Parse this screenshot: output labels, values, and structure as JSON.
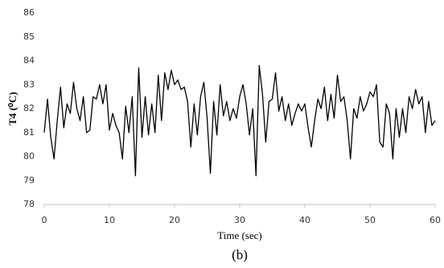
{
  "chart_data": {
    "type": "line",
    "xlabel": "Time (sec)",
    "ylabel": "T4 (⁰C)",
    "caption": "(b)",
    "x": [
      0,
      0.5,
      1,
      1.5,
      2,
      2.5,
      3,
      3.5,
      4,
      4.5,
      5,
      5.5,
      6,
      6.5,
      7,
      7.5,
      8,
      8.5,
      9,
      9.5,
      10,
      10.5,
      11,
      11.5,
      12,
      12.5,
      13,
      13.5,
      14,
      14.5,
      15,
      15.5,
      16,
      16.5,
      17,
      17.5,
      18,
      18.5,
      19,
      19.5,
      20,
      20.5,
      21,
      21.5,
      22,
      22.5,
      23,
      23.5,
      24,
      24.5,
      25,
      25.5,
      26,
      26.5,
      27,
      27.5,
      28,
      28.5,
      29,
      29.5,
      30,
      30.5,
      31,
      31.5,
      32,
      32.5,
      33,
      33.5,
      34,
      34.5,
      35,
      35.5,
      36,
      36.5,
      37,
      37.5,
      38,
      38.5,
      39,
      39.5,
      40,
      40.5,
      41,
      41.5,
      42,
      42.5,
      43,
      43.5,
      44,
      44.5,
      45,
      45.5,
      46,
      46.5,
      47,
      47.5,
      48,
      48.5,
      49,
      49.5,
      50,
      50.5,
      51,
      51.5,
      52,
      52.5,
      53,
      53.5,
      54,
      54.5,
      55,
      55.5,
      56,
      56.5,
      57,
      57.5,
      58,
      58.5,
      59,
      59.5,
      60
    ],
    "series": [
      {
        "color": "#000000",
        "values": [
          81.0,
          82.4,
          80.8,
          79.9,
          81.5,
          82.9,
          81.2,
          82.2,
          81.8,
          83.1,
          82.0,
          81.5,
          82.5,
          81.0,
          81.1,
          82.5,
          82.4,
          83.0,
          82.2,
          83.0,
          81.1,
          81.8,
          81.3,
          81.0,
          79.9,
          82.1,
          81.0,
          82.5,
          79.2,
          83.7,
          80.8,
          82.5,
          80.9,
          82.2,
          81.0,
          83.4,
          81.5,
          83.5,
          82.8,
          83.6,
          83.0,
          83.2,
          82.8,
          82.9,
          82.3,
          80.4,
          82.2,
          80.9,
          82.5,
          83.1,
          81.6,
          79.3,
          82.3,
          80.9,
          83.0,
          81.7,
          82.3,
          81.5,
          82.0,
          81.6,
          82.5,
          83.0,
          82.2,
          80.9,
          82.0,
          79.2,
          83.8,
          82.6,
          80.6,
          82.3,
          82.4,
          83.5,
          81.9,
          82.5,
          81.5,
          82.2,
          81.3,
          81.8,
          82.2,
          81.9,
          82.2,
          81.2,
          80.4,
          81.5,
          82.4,
          82.0,
          82.9,
          81.5,
          82.6,
          81.6,
          83.4,
          82.3,
          82.5,
          81.5,
          79.9,
          82.0,
          81.6,
          82.5,
          81.9,
          82.2,
          82.7,
          82.5,
          83.0,
          80.6,
          80.4,
          82.2,
          81.8,
          79.9,
          82.0,
          80.8,
          82.0,
          81.0,
          82.5,
          82.0,
          82.8,
          82.2,
          82.5,
          81.0,
          82.3,
          81.3,
          81.5
        ]
      }
    ],
    "xlim": [
      0,
      60
    ],
    "xticks": [
      0,
      10,
      20,
      30,
      40,
      50,
      60
    ],
    "ylim": [
      78,
      86
    ],
    "yticks": [
      78,
      79,
      80,
      81,
      82,
      83,
      84,
      85,
      86
    ]
  }
}
